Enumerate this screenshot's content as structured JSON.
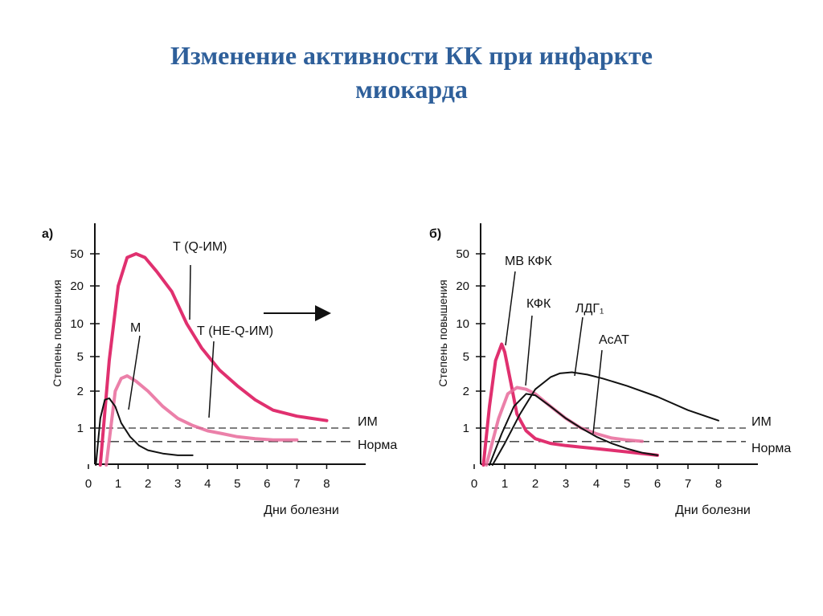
{
  "slide": {
    "title_line1": "Изменение активности КК при инфаркте",
    "title_line2": "миокарда",
    "title_color": "#2e5f9a"
  },
  "colors": {
    "pink": "#e0306f",
    "pink_light": "#e86a9a",
    "black": "#111111"
  },
  "chart_data": [
    {
      "panel_label": "а)",
      "type": "line",
      "ylabel": "Степень повышения",
      "xlabel": "Дни болезни",
      "x_ticks": [
        "0",
        "1",
        "2",
        "3",
        "4",
        "5",
        "6",
        "7",
        "8"
      ],
      "y_ticks": [
        "1",
        "2",
        "5",
        "10",
        "20",
        "50"
      ],
      "y_scale": "log",
      "xlim": [
        0,
        8.5
      ],
      "ylim": [
        0.5,
        70
      ],
      "reference_lines": [
        {
          "label": "ИМ",
          "value": 1.0
        },
        {
          "label": "Норма",
          "value": 0.8
        }
      ],
      "series": [
        {
          "name": "Т (Q-ИМ)",
          "color": "pink",
          "x": [
            0.4,
            0.7,
            1.0,
            1.3,
            1.6,
            1.9,
            2.3,
            2.8,
            3.3,
            3.8,
            4.4,
            5.0,
            5.6,
            6.2,
            7.0,
            8.0
          ],
          "y": [
            0.5,
            4.5,
            20,
            45,
            50,
            45,
            30,
            18,
            10,
            6,
            3.5,
            2.3,
            1.7,
            1.4,
            1.25,
            1.15
          ]
        },
        {
          "name": "Т (НЕ-Q-ИМ)",
          "color": "pink_light",
          "x": [
            0.6,
            0.9,
            1.1,
            1.3,
            1.6,
            2.0,
            2.5,
            3.0,
            3.5,
            4.0,
            4.5,
            5.0,
            5.6,
            6.2,
            7.0
          ],
          "y": [
            0.5,
            2.0,
            2.8,
            3.0,
            2.6,
            2.0,
            1.5,
            1.2,
            1.05,
            0.95,
            0.9,
            0.85,
            0.82,
            0.8,
            0.8
          ]
        },
        {
          "name": "М",
          "color": "black",
          "x": [
            0.25,
            0.4,
            0.55,
            0.7,
            0.9,
            1.1,
            1.4,
            1.7,
            2.0,
            2.5,
            3.0,
            3.5
          ],
          "y": [
            0.5,
            1.2,
            1.7,
            1.75,
            1.5,
            1.1,
            0.85,
            0.72,
            0.66,
            0.62,
            0.6,
            0.6
          ]
        }
      ],
      "annotations": [
        "Т (Q-ИМ)",
        "Т (НЕ-Q-ИМ)",
        "М"
      ]
    },
    {
      "panel_label": "б)",
      "type": "line",
      "ylabel": "Степень повышения",
      "xlabel": "Дни болезни",
      "x_ticks": [
        "0",
        "1",
        "2",
        "3",
        "4",
        "5",
        "6",
        "7",
        "8"
      ],
      "y_ticks": [
        "1",
        "2",
        "5",
        "10",
        "20",
        "50"
      ],
      "y_scale": "log",
      "xlim": [
        0,
        8.5
      ],
      "ylim": [
        0.5,
        70
      ],
      "reference_lines": [
        {
          "label": "ИМ",
          "value": 1.0
        },
        {
          "label": "Норма",
          "value": 0.8
        }
      ],
      "series": [
        {
          "name": "MB КФК",
          "color": "pink",
          "x": [
            0.3,
            0.5,
            0.7,
            0.9,
            1.0,
            1.2,
            1.4,
            1.7,
            2.0,
            2.5,
            3.0,
            3.5,
            4.0,
            4.5,
            5.0,
            5.5,
            6.0
          ],
          "y": [
            0.5,
            1.5,
            4.5,
            6.5,
            5.5,
            2.5,
            1.3,
            0.95,
            0.82,
            0.75,
            0.72,
            0.7,
            0.68,
            0.66,
            0.64,
            0.62,
            0.6
          ]
        },
        {
          "name": "КФК",
          "color": "pink_light",
          "x": [
            0.4,
            0.8,
            1.1,
            1.4,
            1.7,
            2.0,
            2.5,
            3.0,
            3.5,
            4.0,
            4.5,
            5.0,
            5.5
          ],
          "y": [
            0.5,
            1.2,
            1.9,
            2.2,
            2.1,
            1.9,
            1.5,
            1.2,
            1.0,
            0.9,
            0.83,
            0.8,
            0.78
          ]
        },
        {
          "name": "АсАТ",
          "color": "black",
          "x": [
            0.5,
            0.9,
            1.3,
            1.7,
            2.0,
            2.5,
            3.0,
            3.5,
            4.0,
            4.5,
            5.0,
            5.5,
            6.0
          ],
          "y": [
            0.5,
            0.9,
            1.5,
            1.9,
            1.85,
            1.5,
            1.2,
            1.0,
            0.85,
            0.75,
            0.68,
            0.63,
            0.6
          ]
        },
        {
          "name": "ЛДГ₁",
          "color": "black",
          "x": [
            0.6,
            1.0,
            1.5,
            2.0,
            2.5,
            2.8,
            3.2,
            3.7,
            4.2,
            5.0,
            6.0,
            7.0,
            8.0
          ],
          "y": [
            0.5,
            0.75,
            1.3,
            2.1,
            2.9,
            3.2,
            3.3,
            3.1,
            2.8,
            2.3,
            1.8,
            1.4,
            1.15
          ]
        }
      ],
      "annotations": [
        "MB КФК",
        "КФК",
        "ЛДГ₁",
        "АсАТ"
      ]
    }
  ]
}
